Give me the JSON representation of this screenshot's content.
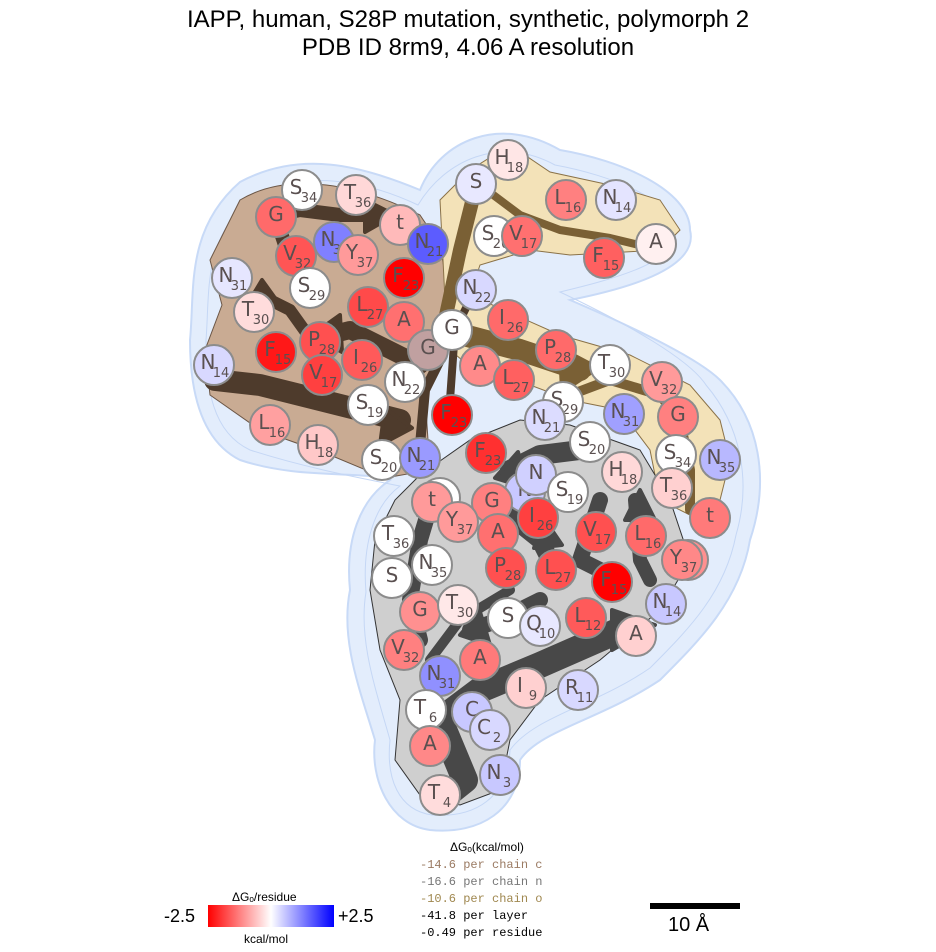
{
  "title": {
    "line1": "IAPP, human, S28P mutation, synthetic, polymorph 2",
    "line2": "PDB ID 8rm9, 4.06 A resolution"
  },
  "colors": {
    "halo": "#dbe8fb",
    "chain_c_fill": "#c9ab93",
    "chain_c_arrow": "#4e3b2c",
    "chain_n_fill": "#cfcfcf",
    "chain_n_arrow": "#484848",
    "chain_o_fill": "#f3e2b8",
    "chain_o_arrow": "#7a6035"
  },
  "residues": [
    {
      "l": "S",
      "n": "34",
      "c": "#ffffff",
      "chain": "c"
    },
    {
      "l": "T",
      "n": "36",
      "c": "#ffd8d8",
      "chain": "c"
    },
    {
      "l": "G",
      "n": "",
      "c": "#ff6a6a",
      "chain": "c"
    },
    {
      "l": "t",
      "n": "",
      "c": "#ffbaba",
      "chain": "c"
    },
    {
      "l": "N",
      "n": "35",
      "c": "#8080ff",
      "chain": "c"
    },
    {
      "l": "Y",
      "n": "37",
      "c": "#ff9a9a",
      "chain": "c"
    },
    {
      "l": "V",
      "n": "32",
      "c": "#ff5555",
      "chain": "c"
    },
    {
      "l": "N",
      "n": "31",
      "c": "#e6e6ff",
      "chain": "c"
    },
    {
      "l": "S",
      "n": "29",
      "c": "#ffffff",
      "chain": "c"
    },
    {
      "l": "T",
      "n": "30",
      "c": "#ffdcdc",
      "chain": "c"
    },
    {
      "l": "L",
      "n": "27",
      "c": "#ff4a4a",
      "chain": "c"
    },
    {
      "l": "A",
      "n": "",
      "c": "#ff7070",
      "chain": "c"
    },
    {
      "l": "P",
      "n": "28",
      "c": "#ff5050",
      "chain": "c"
    },
    {
      "l": "F",
      "n": "15",
      "c": "#ff1818",
      "chain": "c"
    },
    {
      "l": "N",
      "n": "14",
      "c": "#d8d8ff",
      "chain": "c"
    },
    {
      "l": "V",
      "n": "17",
      "c": "#ff4040",
      "chain": "c"
    },
    {
      "l": "I",
      "n": "26",
      "c": "#ff5a5a",
      "chain": "c"
    },
    {
      "l": "G",
      "n": "",
      "c": "#c0a0a0",
      "chain": "c"
    },
    {
      "l": "N",
      "n": "22",
      "c": "#ffffff",
      "chain": "c"
    },
    {
      "l": "S",
      "n": "19",
      "c": "#ffffff",
      "chain": "c"
    },
    {
      "l": "F",
      "n": "23",
      "c": "#ff0000",
      "chain": "c"
    },
    {
      "l": "L",
      "n": "16",
      "c": "#ffa0a0",
      "chain": "c"
    },
    {
      "l": "H",
      "n": "18",
      "c": "#ffc8c8",
      "chain": "c"
    },
    {
      "l": "S",
      "n": "20",
      "c": "#ffffff",
      "chain": "c"
    },
    {
      "l": "N",
      "n": "21",
      "c": "#9a9aff",
      "chain": "c"
    },
    {
      "l": "H",
      "n": "18",
      "c": "#ffe6e6",
      "chain": "o"
    },
    {
      "l": "S",
      "n": "",
      "c": "#e8e8ff",
      "chain": "o"
    },
    {
      "l": "L",
      "n": "16",
      "c": "#ff8080",
      "chain": "o"
    },
    {
      "l": "N",
      "n": "14",
      "c": "#e4e4ff",
      "chain": "o"
    },
    {
      "l": "S",
      "n": "20",
      "c": "#ffffff",
      "chain": "o"
    },
    {
      "l": "V",
      "n": "17",
      "c": "#ff7070",
      "chain": "o"
    },
    {
      "l": "N",
      "n": "21",
      "c": "#5c5cff",
      "chain": "o"
    },
    {
      "l": "F",
      "n": "15",
      "c": "#ff6060",
      "chain": "o"
    },
    {
      "l": "A",
      "n": "",
      "c": "#fff0f0",
      "chain": "o"
    },
    {
      "l": "F",
      "n": "23",
      "c": "#ff0000",
      "chain": "o"
    },
    {
      "l": "N",
      "n": "22",
      "c": "#d8d8ff",
      "chain": "o"
    },
    {
      "l": "G",
      "n": "",
      "c": "#ffffff",
      "chain": "o"
    },
    {
      "l": "I",
      "n": "26",
      "c": "#ff6a6a",
      "chain": "o"
    },
    {
      "l": "P",
      "n": "28",
      "c": "#ff6a6a",
      "chain": "o"
    },
    {
      "l": "A",
      "n": "",
      "c": "#ff8a8a",
      "chain": "o"
    },
    {
      "l": "L",
      "n": "27",
      "c": "#ff6060",
      "chain": "o"
    },
    {
      "l": "T",
      "n": "30",
      "c": "#ffffff",
      "chain": "o"
    },
    {
      "l": "V",
      "n": "32",
      "c": "#ff9a9a",
      "chain": "o"
    },
    {
      "l": "S",
      "n": "29",
      "c": "#ffffff",
      "chain": "o"
    },
    {
      "l": "N",
      "n": "31",
      "c": "#a0a0ff",
      "chain": "o"
    },
    {
      "l": "G",
      "n": "",
      "c": "#ff8080",
      "chain": "o"
    },
    {
      "l": "S",
      "n": "34",
      "c": "#ffffff",
      "chain": "o"
    },
    {
      "l": "N",
      "n": "35",
      "c": "#b8b8ff",
      "chain": "o"
    },
    {
      "l": "T",
      "n": "36",
      "c": "#ffd0d0",
      "chain": "o"
    },
    {
      "l": "t",
      "n": "",
      "c": "#ff7a7a",
      "chain": "o"
    },
    {
      "l": "Y",
      "n": "37",
      "c": "#ff9090",
      "chain": "o"
    },
    {
      "l": "N",
      "n": "21",
      "c": "#dcdcff",
      "chain": "n"
    },
    {
      "l": "S",
      "n": "20",
      "c": "#ffffff",
      "chain": "n"
    },
    {
      "l": "F",
      "n": "23",
      "c": "#ff3030",
      "chain": "n"
    },
    {
      "l": "N",
      "n": "",
      "c": "#c8c8ff",
      "chain": "n"
    },
    {
      "l": "N",
      "n": "",
      "c": "#d0d0ff",
      "chain": "n"
    },
    {
      "l": "S",
      "n": "19",
      "c": "#ffffff",
      "chain": "n"
    },
    {
      "l": "H",
      "n": "18",
      "c": "#ffd8d8",
      "chain": "n"
    },
    {
      "l": "G",
      "n": "",
      "c": "#ff8080",
      "chain": "n"
    },
    {
      "l": "S",
      "n": "",
      "c": "#ffffff",
      "chain": "n"
    },
    {
      "l": "t",
      "n": "",
      "c": "#ff9a9a",
      "chain": "n"
    },
    {
      "l": "Y",
      "n": "37",
      "c": "#ff9a9a",
      "chain": "n"
    },
    {
      "l": "I",
      "n": "26",
      "c": "#ff4040",
      "chain": "n"
    },
    {
      "l": "A",
      "n": "",
      "c": "#ff7070",
      "chain": "n"
    },
    {
      "l": "V",
      "n": "17",
      "c": "#ff5050",
      "chain": "n"
    },
    {
      "l": "L",
      "n": "16",
      "c": "#ff6a6a",
      "chain": "n"
    },
    {
      "l": "T",
      "n": "36",
      "c": "#ffffff",
      "chain": "n"
    },
    {
      "l": "N",
      "n": "35",
      "c": "#ffffff",
      "chain": "n"
    },
    {
      "l": "S",
      "n": "",
      "c": "#ffffff",
      "chain": "n"
    },
    {
      "l": "P",
      "n": "28",
      "c": "#ff5050",
      "chain": "n"
    },
    {
      "l": "L",
      "n": "27",
      "c": "#ff5050",
      "chain": "n"
    },
    {
      "l": "F",
      "n": "15",
      "c": "#ff0000",
      "chain": "n"
    },
    {
      "l": "Y",
      "n": "37",
      "c": "#ff8888",
      "chain": "n"
    },
    {
      "l": "G",
      "n": "",
      "c": "#ff9090",
      "chain": "n"
    },
    {
      "l": "T",
      "n": "30",
      "c": "#ffe8e8",
      "chain": "n"
    },
    {
      "l": "S",
      "n": "",
      "c": "#ffffff",
      "chain": "n"
    },
    {
      "l": "Q",
      "n": "10",
      "c": "#e8e8ff",
      "chain": "n"
    },
    {
      "l": "L",
      "n": "12",
      "c": "#ff5a5a",
      "chain": "n"
    },
    {
      "l": "N",
      "n": "14",
      "c": "#c8c8ff",
      "chain": "n"
    },
    {
      "l": "A",
      "n": "",
      "c": "#ffd0d0",
      "chain": "n"
    },
    {
      "l": "V",
      "n": "32",
      "c": "#ff8080",
      "chain": "n"
    },
    {
      "l": "N",
      "n": "31",
      "c": "#9090ff",
      "chain": "n"
    },
    {
      "l": "A",
      "n": "",
      "c": "#ff7a7a",
      "chain": "n"
    },
    {
      "l": "I",
      "n": "9",
      "c": "#ffd0d0",
      "chain": "n"
    },
    {
      "l": "R",
      "n": "11",
      "c": "#d8d8ff",
      "chain": "n"
    },
    {
      "l": "T",
      "n": "6",
      "c": "#ffffff",
      "chain": "n"
    },
    {
      "l": "C",
      "n": "",
      "c": "#c8c8ff",
      "chain": "n"
    },
    {
      "l": "C",
      "n": "2",
      "c": "#d8d8ff",
      "chain": "n"
    },
    {
      "l": "A",
      "n": "",
      "c": "#ff8888",
      "chain": "n"
    },
    {
      "l": "N",
      "n": "3",
      "c": "#c8c8ff",
      "chain": "n"
    },
    {
      "l": "T",
      "n": "4",
      "c": "#ffdcdc",
      "chain": "n"
    }
  ],
  "legend": {
    "colorbar_title": "ΔGₒ/residue",
    "colorbar_unit": "kcal/mol",
    "min": "-2.5",
    "max": "+2.5",
    "energy_title": "ΔGₒ(kcal/mol)",
    "energies": [
      {
        "text": "-14.6 per chain c",
        "color": "#9b7b63"
      },
      {
        "text": "-16.6 per chain n",
        "color": "#777777"
      },
      {
        "text": "-10.6 per chain o",
        "color": "#a08850"
      },
      {
        "text": "-41.8 per layer",
        "color": "#000000"
      },
      {
        "text": "-0.49 per residue",
        "color": "#000000"
      }
    ],
    "scale_label": "10 Å"
  }
}
